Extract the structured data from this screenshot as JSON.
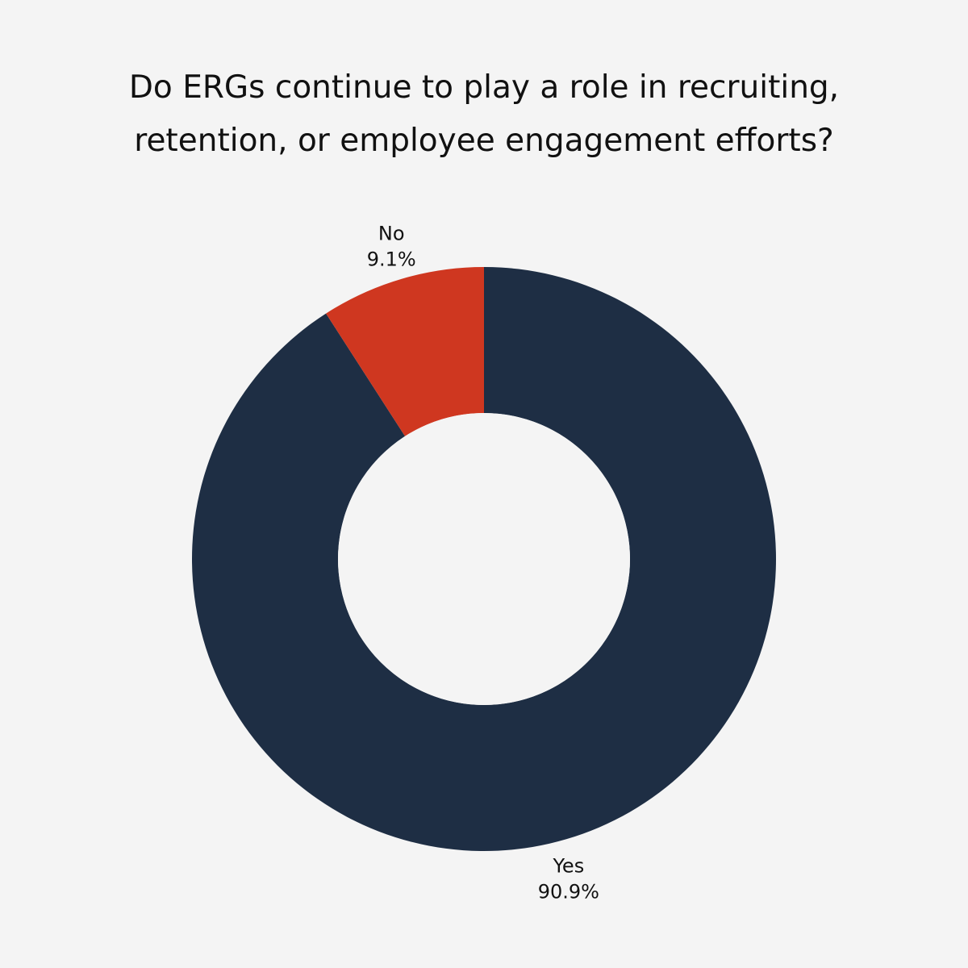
{
  "chart_data": {
    "type": "pie",
    "variant": "donut",
    "title": "Do ERGs continue to play a role in recruiting, retention, or employee engagement efforts?",
    "slices": [
      {
        "label": "Yes",
        "value": 90.9,
        "value_label": "90.9%",
        "color": "#1e2e44"
      },
      {
        "label": "No",
        "value": 9.1,
        "value_label": "9.1%",
        "color": "#cf3720"
      }
    ],
    "start_angle": "12 o'clock",
    "direction": "clockwise",
    "legend": "none"
  },
  "colors": {
    "background": "#f4f4f4",
    "hole": "#f4f4f4"
  }
}
